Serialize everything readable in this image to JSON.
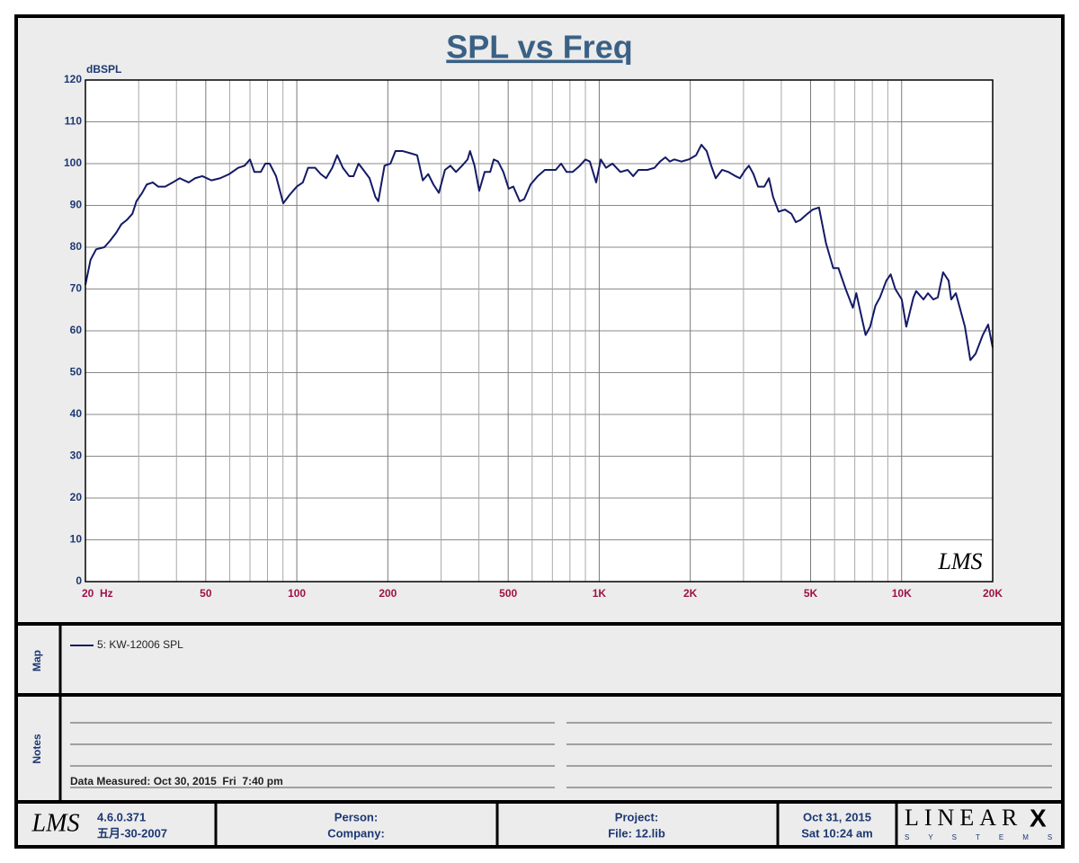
{
  "chart_data": {
    "type": "line",
    "title": "SPL vs Freq",
    "ylabel": "dBSPL",
    "log_x": true,
    "grid": true,
    "xlim": [
      20,
      20000
    ],
    "ylim": [
      0,
      120
    ],
    "xticks": [
      {
        "value": 20,
        "label": "20  Hz"
      },
      50,
      100,
      200,
      500,
      {
        "value": 1000,
        "label": "1K"
      },
      {
        "value": 2000,
        "label": "2K"
      },
      {
        "value": 5000,
        "label": "5K"
      },
      {
        "value": 10000,
        "label": "10K"
      },
      {
        "value": 20000,
        "label": "20K"
      }
    ],
    "x_minor_ticks": [
      30,
      40,
      60,
      70,
      80,
      90,
      300,
      400,
      600,
      700,
      800,
      900,
      3000,
      4000,
      6000,
      7000,
      8000,
      9000
    ],
    "yticks": [
      0,
      10,
      20,
      30,
      40,
      50,
      60,
      70,
      80,
      90,
      100,
      110,
      120
    ],
    "x": [
      20,
      20.8,
      21.7,
      23.1,
      24.1,
      25.3,
      26.3,
      27.4,
      28.6,
      29.5,
      30.8,
      31.9,
      33.4,
      34.8,
      36.7,
      38.9,
      41,
      43.9,
      46.1,
      48.7,
      52.2,
      55.8,
      59.8,
      64,
      67.2,
      70,
      72.4,
      76,
      78.7,
      81.3,
      85.4,
      90.2,
      94.6,
      100,
      104.7,
      109,
      115,
      120,
      125,
      131,
      136,
      142,
      149,
      154,
      160,
      166,
      174,
      182,
      186,
      195,
      204,
      212,
      224,
      237,
      250,
      261,
      272,
      283,
      295,
      309,
      322,
      336,
      352,
      367,
      374,
      387,
      401,
      418,
      436,
      448,
      463,
      482,
      502,
      520,
      546,
      565,
      593,
      626,
      661,
      718,
      748,
      780,
      817,
      863,
      900,
      931,
      977,
      1012,
      1053,
      1106,
      1175,
      1242,
      1295,
      1348,
      1443,
      1524,
      1589,
      1655,
      1711,
      1770,
      1870,
      1978,
      2090,
      2177,
      2266,
      2346,
      2428,
      2548,
      2673,
      2825,
      2918,
      3042,
      3126,
      3236,
      3350,
      3516,
      3640,
      3758,
      3920,
      4112,
      4320,
      4468,
      4624,
      4880,
      5080,
      5330,
      5620,
      5940,
      6180,
      6530,
      6900,
      7080,
      7600,
      7870,
      8190,
      8480,
      8900,
      9200,
      9530,
      10010,
      10360,
      10940,
      11170,
      11810,
      12220,
      12730,
      13170,
      13710,
      14300,
      14590,
      15110,
      16190,
      16870,
      17560,
      18550,
      19320,
      20000
    ],
    "series": [
      {
        "name": "5: KW-12006 SPL",
        "color": "#141a66",
        "values": [
          71,
          77,
          79.5,
          80,
          81.5,
          83.5,
          85.5,
          86.5,
          88,
          91,
          93,
          95,
          95.5,
          94.5,
          94.5,
          95.5,
          96.5,
          95.5,
          96.5,
          97,
          96,
          96.5,
          97.5,
          99,
          99.5,
          101,
          98,
          98,
          100,
          100,
          97,
          90.5,
          92.5,
          94.5,
          95.5,
          99,
          99,
          97.5,
          96.5,
          99,
          102,
          99,
          97,
          97,
          100,
          98.5,
          96.5,
          92,
          91,
          99.5,
          100,
          103,
          103,
          102.5,
          102,
          96,
          97.5,
          95,
          93,
          98.5,
          99.5,
          98,
          99.5,
          101,
          103,
          99.5,
          93.5,
          98,
          98,
          101,
          100.5,
          98,
          94,
          94.5,
          91,
          91.5,
          95,
          97,
          98.5,
          98.5,
          100,
          98,
          98,
          99.5,
          101,
          100.5,
          95.5,
          101,
          99,
          100,
          98,
          98.5,
          97,
          98.5,
          98.5,
          99,
          100.5,
          101.5,
          100.5,
          101,
          100.5,
          101,
          102,
          104.5,
          103,
          99.5,
          96.5,
          98.5,
          98,
          97,
          96.5,
          98.5,
          99.5,
          97.5,
          94.5,
          94.5,
          96.5,
          92,
          88.5,
          89,
          88,
          86,
          86.5,
          88,
          89,
          89.5,
          81,
          75,
          75,
          70,
          65.5,
          69,
          59,
          61,
          66,
          68,
          72,
          73.5,
          70,
          67.5,
          61,
          68,
          69.5,
          67.5,
          69,
          67.5,
          68,
          74,
          72,
          67.5,
          69,
          61,
          53,
          54.5,
          59,
          61.5,
          56
        ]
      }
    ],
    "watermark": "LMS"
  },
  "map_label": "Map",
  "notes_label": "Notes",
  "data_measured": "Data Measured: Oct 30, 2015  Fri  7:40 pm",
  "footer": {
    "logo": "LMS",
    "version": "4.6.0.371",
    "version_date": "五月-30-2007",
    "person": "Person:",
    "company": "Company:",
    "project": "Project:",
    "file": "File: 12.lib",
    "date": "Oct 31, 2015",
    "time": "Sat 10:24 am",
    "brand": "LINEAR",
    "brand_x": "X",
    "brand_sub": "SYSTEMS"
  }
}
